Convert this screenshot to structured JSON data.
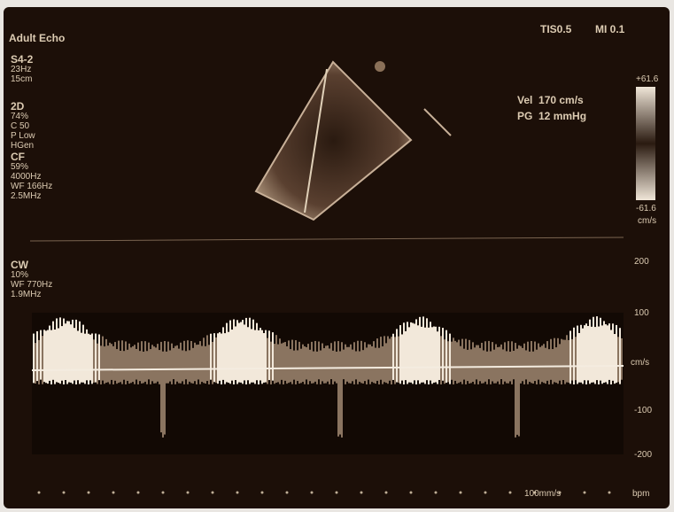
{
  "header": {
    "mode": "Adult Echo",
    "indices": [
      "TIS0.5",
      "MI 0.1"
    ]
  },
  "probe": [
    "S4-2",
    "23Hz",
    "15cm"
  ],
  "settings_2d": [
    "2D",
    "74%",
    "C 50",
    "P Low",
    "HGen"
  ],
  "settings_cf": [
    "CF",
    "59%",
    "4000Hz",
    "WF 166Hz",
    "2.5MHz"
  ],
  "settings_cw": [
    "CW",
    "10%",
    "WF 770Hz",
    "1.9MHz"
  ],
  "measurements": [
    "Vel  170 cm/s",
    "PG  12 mmHg"
  ],
  "color_scale": {
    "top": "+61.6",
    "bottom": "-61.6",
    "unit": "cm/s"
  },
  "doppler_scale": [
    "200",
    "100",
    "cm/s",
    "-100",
    "-200"
  ],
  "sweep": "100mm/s",
  "hr": "bpm"
}
